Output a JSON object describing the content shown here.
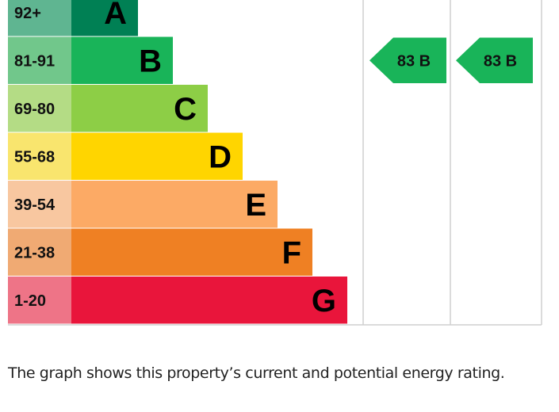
{
  "chart_data": {
    "type": "bar",
    "bands": [
      {
        "range": "92+",
        "letter": "A",
        "color": "#008054",
        "range_color": "#5fb591"
      },
      {
        "range": "81-91",
        "letter": "B",
        "color": "#19b459",
        "range_color": "#71c78b"
      },
      {
        "range": "69-80",
        "letter": "C",
        "color": "#8dce46",
        "range_color": "#b4dc85"
      },
      {
        "range": "55-68",
        "letter": "D",
        "color": "#ffd500",
        "range_color": "#f9e56e"
      },
      {
        "range": "39-54",
        "letter": "E",
        "color": "#fcaa65",
        "range_color": "#f8c7a0"
      },
      {
        "range": "21-38",
        "letter": "F",
        "color": "#ef8023",
        "range_color": "#f0aa73"
      },
      {
        "range": "1-20",
        "letter": "G",
        "color": "#e9153b",
        "range_color": "#ee7487"
      }
    ],
    "current": {
      "value": 83,
      "band": "B",
      "label": "83  B"
    },
    "potential": {
      "value": 83,
      "band": "B",
      "label": "83  B"
    },
    "arrow_color": "#19b459",
    "grid_color": "#cfcfcf"
  },
  "caption": "The graph shows this property’s current and potential energy rating."
}
